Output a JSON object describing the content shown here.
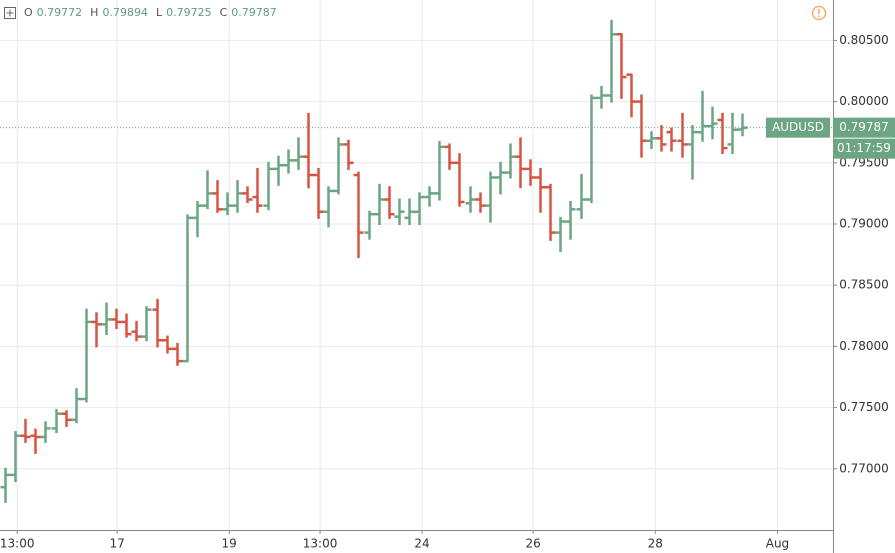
{
  "chart_data": {
    "type": "ohlc",
    "header": [
      {
        "label": "O",
        "value": "0.79772"
      },
      {
        "label": "H",
        "value": "0.79894"
      },
      {
        "label": "L",
        "value": "0.79725"
      },
      {
        "label": "C",
        "value": "0.79787"
      }
    ],
    "symbol": "AUDUSD",
    "last_price": 0.79787,
    "countdown": "01:17:59",
    "up_color": "#6ba583",
    "down_color": "#d75442",
    "grid": true,
    "xlim": [
      -0.5,
      82
    ],
    "xticks": [
      {
        "value": 1.2,
        "label": "13:00"
      },
      {
        "value": 11.1,
        "label": "17"
      },
      {
        "value": 22.2,
        "label": "19"
      },
      {
        "value": 31.2,
        "label": "13:00"
      },
      {
        "value": 41.3,
        "label": "24"
      },
      {
        "value": 52.3,
        "label": "26"
      },
      {
        "value": 64.4,
        "label": "28"
      },
      {
        "value": 76.5,
        "label": "Aug"
      }
    ],
    "ylim": [
      0.765,
      0.8083
    ],
    "yticks": [
      {
        "value": 0.77,
        "label": "0.77000"
      },
      {
        "value": 0.775,
        "label": "0.77500"
      },
      {
        "value": 0.78,
        "label": "0.78000"
      },
      {
        "value": 0.785,
        "label": "0.78500"
      },
      {
        "value": 0.79,
        "label": "0.79000"
      },
      {
        "value": 0.795,
        "label": "0.79500"
      },
      {
        "value": 0.8,
        "label": "0.80000"
      },
      {
        "value": 0.805,
        "label": "0.80500"
      }
    ],
    "open": [
      0.7685,
      0.7695,
      0.7727,
      0.7727,
      0.7726,
      0.7733,
      0.7745,
      0.774,
      0.7757,
      0.782,
      0.7818,
      0.7822,
      0.782,
      0.7812,
      0.7808,
      0.783,
      0.7805,
      0.7798,
      0.7788,
      0.7905,
      0.7915,
      0.7925,
      0.7912,
      0.7915,
      0.7925,
      0.7922,
      0.7915,
      0.7945,
      0.7948,
      0.7952,
      0.7955,
      0.794,
      0.791,
      0.7927,
      0.7965,
      0.794,
      0.7893,
      0.7908,
      0.792,
      0.7906,
      0.7905,
      0.791,
      0.7922,
      0.7925,
      0.7963,
      0.795,
      0.7917,
      0.792,
      0.7915,
      0.7938,
      0.7942,
      0.7955,
      0.7945,
      0.7938,
      0.793,
      0.7893,
      0.7902,
      0.7912,
      0.792,
      0.8003,
      0.8005,
      0.8055,
      0.8022,
      0.8,
      0.7968,
      0.797,
      0.7975,
      0.7968,
      0.7965,
      0.7975,
      0.798,
      0.7985,
      0.7965,
      0.79772
    ],
    "high": [
      0.77,
      0.773,
      0.774,
      0.7732,
      0.7738,
      0.7748,
      0.7747,
      0.7765,
      0.783,
      0.7827,
      0.7835,
      0.783,
      0.7826,
      0.782,
      0.7832,
      0.7838,
      0.7808,
      0.7802,
      0.7907,
      0.7918,
      0.7943,
      0.7935,
      0.7925,
      0.7935,
      0.793,
      0.7945,
      0.795,
      0.7955,
      0.796,
      0.797,
      0.799,
      0.7945,
      0.793,
      0.797,
      0.7968,
      0.7942,
      0.791,
      0.7932,
      0.793,
      0.792,
      0.792,
      0.7925,
      0.793,
      0.7967,
      0.7965,
      0.7957,
      0.793,
      0.7925,
      0.7942,
      0.795,
      0.7965,
      0.797,
      0.7952,
      0.7945,
      0.7932,
      0.7905,
      0.7918,
      0.794,
      0.8005,
      0.8012,
      0.8066,
      0.8055,
      0.8022,
      0.8005,
      0.7975,
      0.798,
      0.7978,
      0.799,
      0.798,
      0.8008,
      0.7995,
      0.799,
      0.799,
      0.79894
    ],
    "low": [
      0.7673,
      0.769,
      0.7722,
      0.7713,
      0.7722,
      0.773,
      0.7735,
      0.7738,
      0.7755,
      0.78,
      0.781,
      0.7815,
      0.7808,
      0.7805,
      0.7805,
      0.78,
      0.7795,
      0.7785,
      0.7788,
      0.789,
      0.7913,
      0.791,
      0.7908,
      0.791,
      0.7918,
      0.791,
      0.7912,
      0.7932,
      0.7942,
      0.7945,
      0.793,
      0.7905,
      0.7898,
      0.7925,
      0.7945,
      0.7873,
      0.7888,
      0.79,
      0.7905,
      0.79,
      0.79,
      0.79,
      0.7915,
      0.792,
      0.7945,
      0.7915,
      0.791,
      0.791,
      0.7902,
      0.7925,
      0.7938,
      0.793,
      0.7932,
      0.791,
      0.7887,
      0.7878,
      0.7888,
      0.7905,
      0.7918,
      0.7995,
      0.8,
      0.8003,
      0.7988,
      0.7955,
      0.7962,
      0.796,
      0.796,
      0.7955,
      0.7937,
      0.7968,
      0.797,
      0.7958,
      0.7958,
      0.79725
    ],
    "close": [
      0.7695,
      0.7727,
      0.7726,
      0.7726,
      0.7733,
      0.7745,
      0.774,
      0.7757,
      0.782,
      0.7818,
      0.7822,
      0.782,
      0.781,
      0.7808,
      0.783,
      0.7805,
      0.7798,
      0.7788,
      0.7905,
      0.7915,
      0.7925,
      0.7912,
      0.7915,
      0.7925,
      0.792,
      0.7915,
      0.7945,
      0.7948,
      0.7952,
      0.7955,
      0.794,
      0.791,
      0.7927,
      0.7965,
      0.795,
      0.7893,
      0.7908,
      0.792,
      0.7908,
      0.791,
      0.791,
      0.7922,
      0.7925,
      0.7963,
      0.795,
      0.7918,
      0.792,
      0.7915,
      0.7938,
      0.7942,
      0.7955,
      0.7945,
      0.7938,
      0.793,
      0.7893,
      0.7902,
      0.7912,
      0.792,
      0.8003,
      0.8005,
      0.8055,
      0.802,
      0.8,
      0.7968,
      0.797,
      0.7965,
      0.7968,
      0.7965,
      0.7975,
      0.798,
      0.7982,
      0.7962,
      0.7977,
      0.79787
    ]
  }
}
